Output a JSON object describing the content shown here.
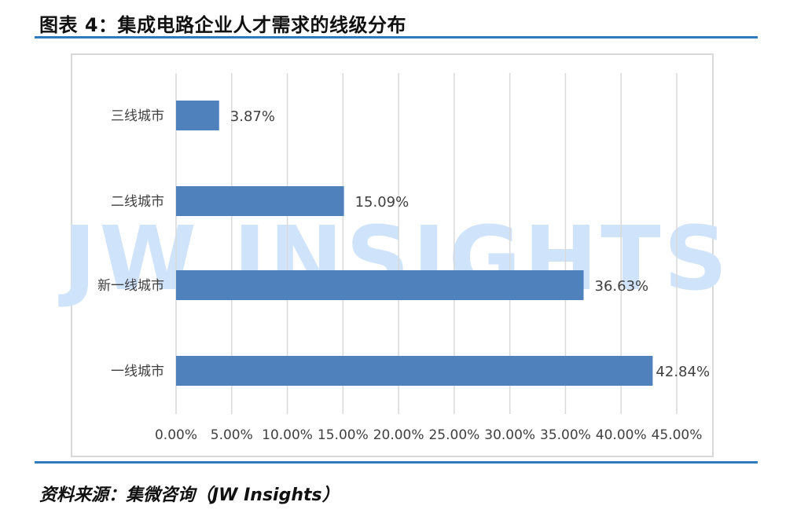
{
  "header": {
    "title": "图表 4：集成电路企业人才需求的线级分布"
  },
  "footer": {
    "source": "资料来源：集微咨询（JW Insights）"
  },
  "watermark": {
    "text": "JW INSIGHTS",
    "color": "#cfe4fb"
  },
  "colors": {
    "bar": "#4f81bd",
    "rule": "#2e7bbd",
    "grid": "#d9d9d9",
    "text": "#404040"
  },
  "chart_data": {
    "type": "bar",
    "orientation": "horizontal",
    "categories": [
      "三线城市",
      "二线城市",
      "新一线城市",
      "一线城市"
    ],
    "values": [
      3.87,
      15.09,
      36.63,
      42.84
    ],
    "value_labels": [
      "3.87%",
      "15.09%",
      "36.63%",
      "42.84%"
    ],
    "xlim": [
      0,
      45
    ],
    "xticks": [
      0,
      5,
      10,
      15,
      20,
      25,
      30,
      35,
      40,
      45
    ],
    "xtick_labels": [
      "0.00%",
      "5.00%",
      "10.00%",
      "15.00%",
      "20.00%",
      "25.00%",
      "30.00%",
      "35.00%",
      "40.00%",
      "45.00%"
    ],
    "grid": "vertical",
    "legend": "none"
  }
}
